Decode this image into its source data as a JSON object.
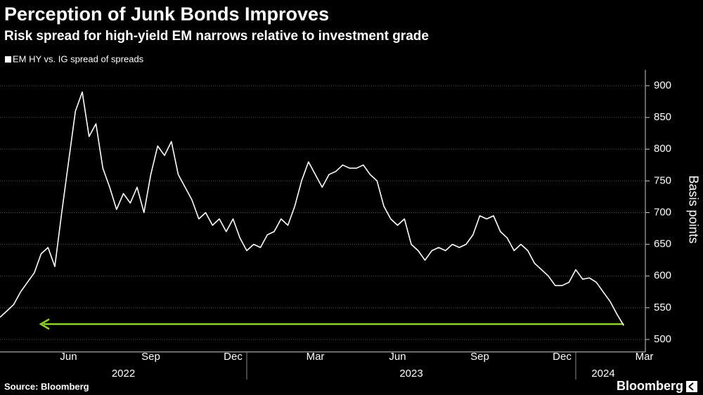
{
  "chart_data": {
    "type": "line",
    "title": "Perception of Junk Bonds Improves",
    "subtitle": "Risk spread for high-yield EM narrows relative to investment grade",
    "y_label": "Basis points",
    "source": "Source: Bloomberg",
    "brand": "Bloomberg",
    "x": [
      "2022-04",
      "2022-04",
      "2022-04",
      "2022-04",
      "2022-05",
      "2022-05",
      "2022-05",
      "2022-05",
      "2022-06",
      "2022-06",
      "2022-06",
      "2022-06",
      "2022-07",
      "2022-07",
      "2022-07",
      "2022-07",
      "2022-08",
      "2022-08",
      "2022-08",
      "2022-08",
      "2022-09",
      "2022-09",
      "2022-09",
      "2022-09",
      "2022-10",
      "2022-10",
      "2022-10",
      "2022-10",
      "2022-11",
      "2022-11",
      "2022-11",
      "2022-11",
      "2022-12",
      "2022-12",
      "2022-12",
      "2022-12",
      "2023-01",
      "2023-01",
      "2023-01",
      "2023-01",
      "2023-02",
      "2023-02",
      "2023-02",
      "2023-02",
      "2023-03",
      "2023-03",
      "2023-03",
      "2023-03",
      "2023-04",
      "2023-04",
      "2023-04",
      "2023-04",
      "2023-05",
      "2023-05",
      "2023-05",
      "2023-05",
      "2023-06",
      "2023-06",
      "2023-06",
      "2023-06",
      "2023-07",
      "2023-07",
      "2023-07",
      "2023-07",
      "2023-08",
      "2023-08",
      "2023-08",
      "2023-08",
      "2023-09",
      "2023-09",
      "2023-09",
      "2023-09",
      "2023-10",
      "2023-10",
      "2023-10",
      "2023-10",
      "2023-11",
      "2023-11",
      "2023-11",
      "2023-11",
      "2023-12",
      "2023-12",
      "2023-12",
      "2023-12",
      "2024-01",
      "2024-01",
      "2024-01",
      "2024-01",
      "2024-02",
      "2024-02",
      "2024-02",
      "2024-02"
    ],
    "series": [
      {
        "name": "EM HY vs. IG spread of spreads",
        "color": "#ffffff",
        "values": [
          535,
          545,
          555,
          575,
          590,
          605,
          635,
          645,
          615,
          700,
          780,
          860,
          890,
          820,
          840,
          770,
          740,
          705,
          730,
          715,
          740,
          700,
          760,
          805,
          790,
          812,
          760,
          740,
          720,
          690,
          700,
          680,
          690,
          670,
          690,
          660,
          640,
          650,
          645,
          665,
          670,
          690,
          680,
          710,
          750,
          780,
          760,
          740,
          760,
          765,
          775,
          770,
          770,
          775,
          760,
          750,
          710,
          690,
          680,
          690,
          650,
          640,
          625,
          640,
          645,
          640,
          650,
          645,
          650,
          665,
          695,
          690,
          695,
          670,
          660,
          640,
          650,
          640,
          620,
          610,
          600,
          585,
          585,
          590,
          610,
          595,
          597,
          590,
          575,
          560,
          540,
          522
        ]
      }
    ],
    "xlim": [
      "2022-04",
      "2024-02"
    ],
    "xticks": [
      {
        "value": "2022-06",
        "label": "Jun"
      },
      {
        "value": "2022-09",
        "label": "Sep"
      },
      {
        "value": "2022-12",
        "label": "Dec"
      },
      {
        "value": "2023-03",
        "label": "Mar"
      },
      {
        "value": "2023-06",
        "label": "Jun"
      },
      {
        "value": "2023-09",
        "label": "Sep"
      },
      {
        "value": "2023-12",
        "label": "Dec"
      },
      {
        "value": "2024-03",
        "label": "Mar"
      }
    ],
    "years": [
      "2022",
      "2023",
      "2024"
    ],
    "ylim": [
      487,
      925
    ],
    "yticks": [
      500,
      550,
      600,
      650,
      700,
      750,
      800,
      850,
      900
    ],
    "grid": true,
    "highlight_color": "#8fd129"
  }
}
